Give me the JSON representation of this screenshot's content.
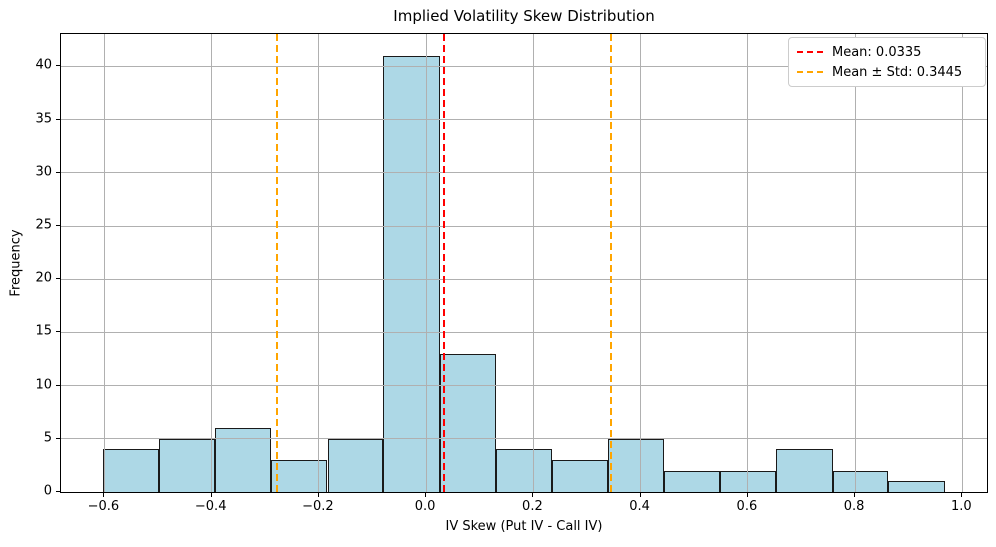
{
  "chart_data": {
    "type": "bar",
    "subtype": "histogram",
    "title": "Implied Volatility Skew Distribution",
    "xlabel": "IV Skew (Put IV - Call IV)",
    "ylabel": "Frequency",
    "bin_edges": [
      -0.603,
      -0.498,
      -0.394,
      -0.289,
      -0.184,
      -0.08,
      0.025,
      0.13,
      0.234,
      0.339,
      0.444,
      0.548,
      0.653,
      0.758,
      0.862,
      0.967
    ],
    "counts": [
      4,
      5,
      6,
      3,
      5,
      41,
      13,
      4,
      3,
      5,
      2,
      2,
      4,
      2,
      1
    ],
    "total_observations": 100,
    "xlim": [
      -0.681,
      1.046
    ],
    "ylim": [
      0,
      43.05
    ],
    "grid": true,
    "xticks": [
      {
        "value": -0.6,
        "label": "−0.6"
      },
      {
        "value": -0.4,
        "label": "−0.4"
      },
      {
        "value": -0.2,
        "label": "−0.2"
      },
      {
        "value": 0.0,
        "label": "0.0"
      },
      {
        "value": 0.2,
        "label": "0.2"
      },
      {
        "value": 0.4,
        "label": "0.4"
      },
      {
        "value": 0.6,
        "label": "0.6"
      },
      {
        "value": 0.8,
        "label": "0.8"
      },
      {
        "value": 1.0,
        "label": "1.0"
      }
    ],
    "yticks": [
      {
        "value": 0,
        "label": "0"
      },
      {
        "value": 5,
        "label": "5"
      },
      {
        "value": 10,
        "label": "10"
      },
      {
        "value": 15,
        "label": "15"
      },
      {
        "value": 20,
        "label": "20"
      },
      {
        "value": 25,
        "label": "25"
      },
      {
        "value": 30,
        "label": "30"
      },
      {
        "value": 35,
        "label": "35"
      },
      {
        "value": 40,
        "label": "40"
      }
    ],
    "vlines": [
      {
        "value": 0.0335,
        "color": "#ff0000",
        "style": "dashed",
        "name": "mean-line"
      },
      {
        "value": -0.2775,
        "color": "#ffa500",
        "style": "dashed",
        "name": "mean-minus-std-line"
      },
      {
        "value": 0.3445,
        "color": "#ffa500",
        "style": "dashed",
        "name": "mean-plus-std-line"
      }
    ],
    "mean": 0.0335,
    "mean_plus_std": 0.3445,
    "legend_position": "upper right",
    "legend": [
      {
        "label": "Mean: 0.0335",
        "color": "#ff0000"
      },
      {
        "label": "Mean ± Std: 0.3445",
        "color": "#ffa500"
      }
    ],
    "colors": {
      "bar_fill": "#add8e6",
      "bar_edge": "#1a1a1a",
      "grid": "#b0b0b0",
      "spine": "#000000",
      "mean_line": "#ff0000",
      "std_line": "#ffa500"
    }
  }
}
